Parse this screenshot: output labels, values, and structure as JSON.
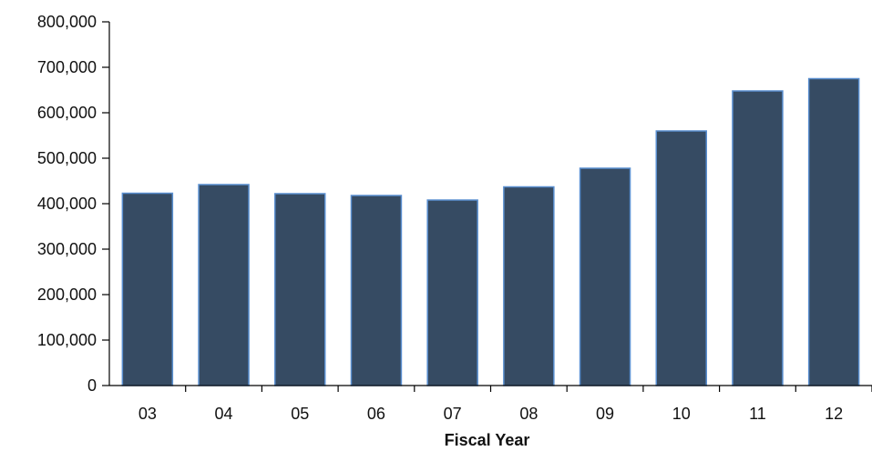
{
  "chart_data": {
    "type": "bar",
    "title": "",
    "xlabel": "Fiscal Year",
    "ylabel": "",
    "categories": [
      "03",
      "04",
      "05",
      "06",
      "07",
      "08",
      "09",
      "10",
      "11",
      "12"
    ],
    "values": [
      423000,
      442000,
      422000,
      418000,
      408000,
      437000,
      478000,
      560000,
      648000,
      675000
    ],
    "ylim": [
      0,
      800000
    ],
    "yticks": [
      "0",
      "100,000",
      "200,000",
      "300,000",
      "400,000",
      "500,000",
      "600,000",
      "700,000",
      "800,000"
    ],
    "grid": false,
    "legend": "none",
    "colors": {
      "bar_fill": "#364b63",
      "bar_edge": "#5a8fd0",
      "axis": "#000000"
    }
  }
}
